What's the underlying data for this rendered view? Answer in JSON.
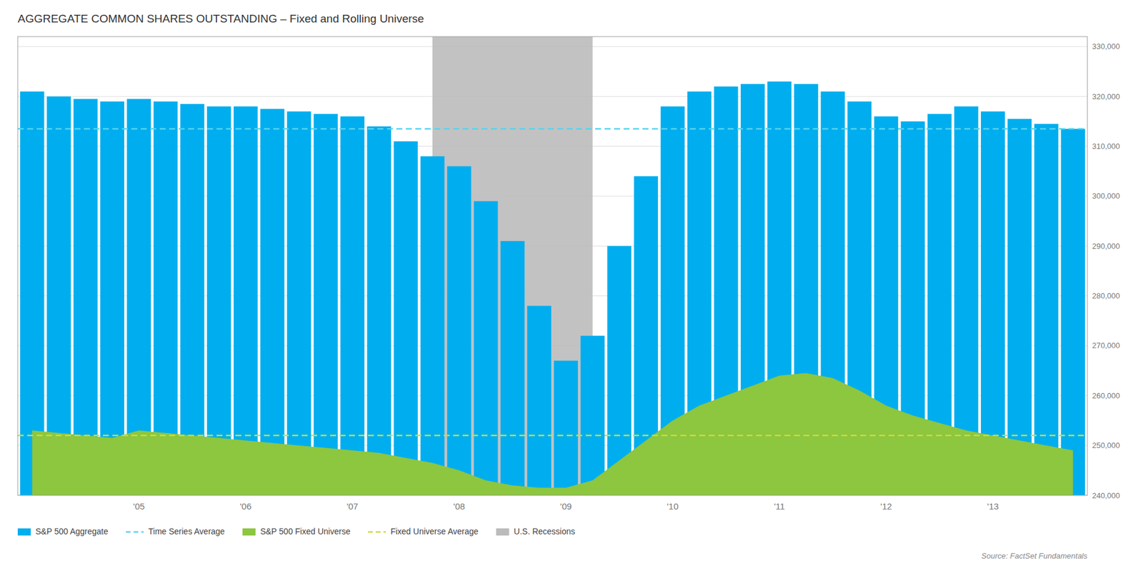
{
  "chart_data": {
    "type": "bar",
    "title": "AGGREGATE COMMON SHARES OUTSTANDING – Fixed and Rolling Universe",
    "source": "Source: FactSet Fundamentals",
    "x": [
      2004.0,
      2004.25,
      2004.5,
      2004.75,
      2005.0,
      2005.25,
      2005.5,
      2005.75,
      2006.0,
      2006.25,
      2006.5,
      2006.75,
      2007.0,
      2007.25,
      2007.5,
      2007.75,
      2008.0,
      2008.25,
      2008.5,
      2008.75,
      2009.0,
      2009.25,
      2009.5,
      2009.75,
      2010.0,
      2010.25,
      2010.5,
      2010.75,
      2011.0,
      2011.25,
      2011.5,
      2011.75,
      2012.0,
      2012.25,
      2012.5,
      2012.75,
      2013.0,
      2013.25,
      2013.5,
      2013.75
    ],
    "series": [
      {
        "name": "S&P 500 Aggregate",
        "type": "bar",
        "color": "#00AEEF",
        "values": [
          321000,
          320000,
          319500,
          319000,
          319500,
          319000,
          318500,
          318000,
          318000,
          317500,
          317000,
          316500,
          316000,
          314000,
          311000,
          308000,
          306000,
          299000,
          291000,
          278000,
          267000,
          272000,
          290000,
          304000,
          318000,
          321000,
          322000,
          322500,
          323000,
          322500,
          321000,
          319000,
          316000,
          315000,
          316500,
          318000,
          317000,
          315500,
          314500,
          313500
        ]
      },
      {
        "name": "S&P 500 Fixed Universe",
        "type": "area",
        "color": "#8DC63F",
        "values": [
          253000,
          252500,
          252000,
          251500,
          253000,
          252500,
          252000,
          251500,
          251000,
          250500,
          250000,
          249500,
          249000,
          248500,
          247500,
          246500,
          245000,
          243000,
          242000,
          241500,
          241500,
          243000,
          247000,
          251000,
          255000,
          258000,
          260000,
          262000,
          264000,
          264500,
          263500,
          261000,
          258000,
          256000,
          254500,
          253000,
          252000,
          251000,
          250000,
          249000
        ]
      }
    ],
    "reference_lines": [
      {
        "name": "Time Series Average",
        "value": 313500,
        "color": "#55D4F0",
        "line_style": "dashed"
      },
      {
        "name": "Fixed Universe Average",
        "value": 252000,
        "color": "#CCDB3A",
        "line_style": "dashed"
      }
    ],
    "shaded_regions": [
      {
        "name": "U.S. Recessions",
        "start": 2007.75,
        "end": 2009.25,
        "color": "#BBBBBB"
      }
    ],
    "xlim": [
      2003.865,
      2013.885
    ],
    "xticks": [
      {
        "value": 2005.0,
        "label": "'05"
      },
      {
        "value": 2006.0,
        "label": "'06"
      },
      {
        "value": 2007.0,
        "label": "'07"
      },
      {
        "value": 2008.0,
        "label": "'08"
      },
      {
        "value": 2009.0,
        "label": "'09"
      },
      {
        "value": 2010.0,
        "label": "'10"
      },
      {
        "value": 2011.0,
        "label": "'11"
      },
      {
        "value": 2012.0,
        "label": "'12"
      },
      {
        "value": 2013.0,
        "label": "'13"
      }
    ],
    "ylim": [
      240000,
      332000
    ],
    "yticks": [
      {
        "value": 240000,
        "label": "240,000"
      },
      {
        "value": 250000,
        "label": "250,000"
      },
      {
        "value": 260000,
        "label": "260,000"
      },
      {
        "value": 270000,
        "label": "270,000"
      },
      {
        "value": 280000,
        "label": "280,000"
      },
      {
        "value": 290000,
        "label": "290,000"
      },
      {
        "value": 300000,
        "label": "300,000"
      },
      {
        "value": 310000,
        "label": "310,000"
      },
      {
        "value": 320000,
        "label": "320,000"
      },
      {
        "value": 330000,
        "label": "330,000"
      }
    ],
    "grid": true,
    "legend": "bottom"
  }
}
